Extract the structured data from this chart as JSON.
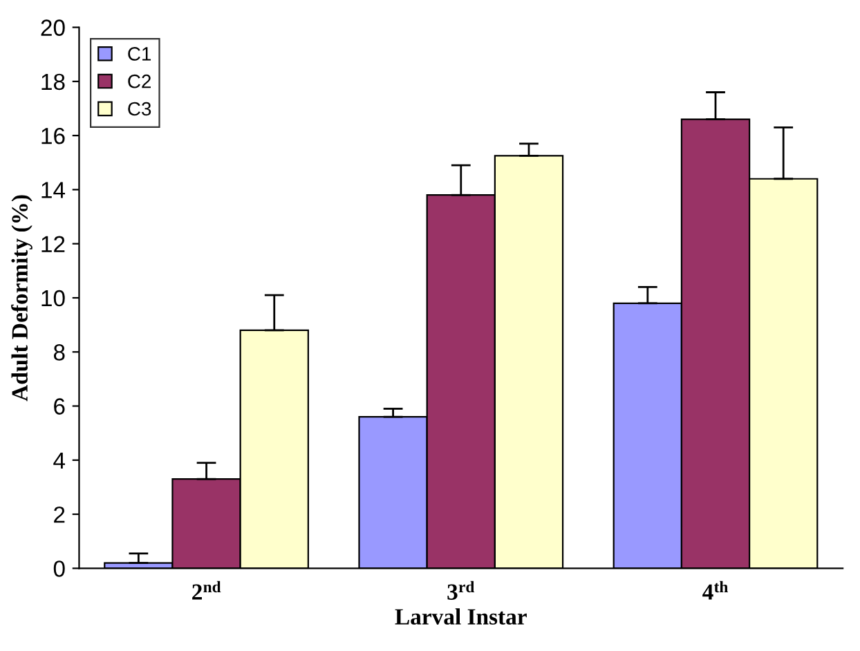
{
  "chart_data": {
    "type": "bar",
    "xlabel": "Larval Instar",
    "ylabel": "Adult Deformity (%)",
    "categories": [
      "2$^{nd}$",
      "3$^{rd}$",
      "4$^{th}$"
    ],
    "series": [
      {
        "name": "C1",
        "color": "#9999ff",
        "values": [
          0.2,
          5.6,
          9.8
        ],
        "errors": [
          [
            0.2,
            0.55
          ],
          [
            5.6,
            5.9
          ],
          [
            9.8,
            10.4
          ]
        ]
      },
      {
        "name": "C2",
        "color": "#993366",
        "values": [
          3.3,
          13.8,
          16.6
        ],
        "errors": [
          [
            3.3,
            3.9
          ],
          [
            13.8,
            14.9
          ],
          [
            16.6,
            17.6
          ]
        ]
      },
      {
        "name": "C3",
        "color": "#ffffcc",
        "values": [
          8.8,
          15.25,
          14.4
        ],
        "errors": [
          [
            8.8,
            10.1
          ],
          [
            15.25,
            15.7
          ],
          [
            14.4,
            16.3
          ]
        ]
      }
    ],
    "ylim": [
      0,
      20
    ],
    "yticks": [
      0,
      2,
      4,
      6,
      8,
      10,
      12,
      14,
      16,
      18,
      20
    ],
    "grid": false,
    "legend": "top left"
  }
}
